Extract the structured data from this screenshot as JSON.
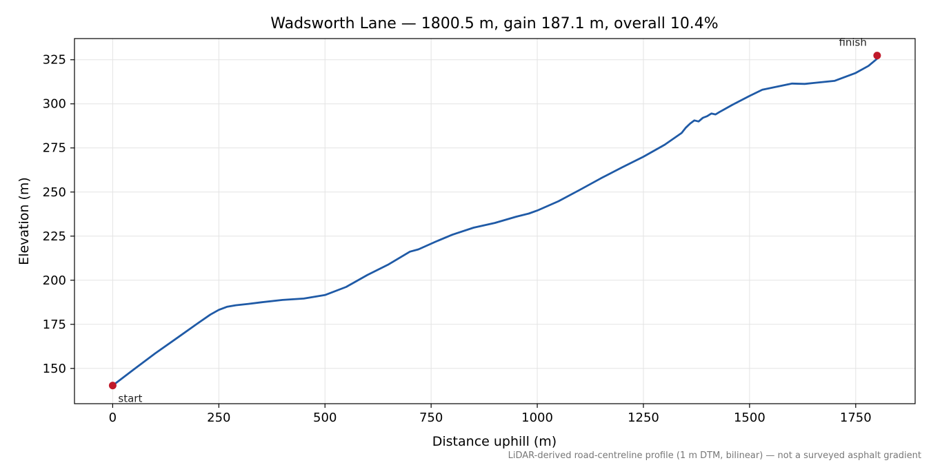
{
  "chart_data": {
    "type": "line",
    "title": "Wadsworth Lane — 1800.5 m, gain 187.1 m, overall 10.4%",
    "xlabel": "Distance uphill (m)",
    "ylabel": "Elevation (m)",
    "xlim": [
      -90,
      1890
    ],
    "ylim": [
      130,
      337
    ],
    "xticks": [
      0,
      250,
      500,
      750,
      1000,
      1250,
      1500,
      1750
    ],
    "yticks": [
      150,
      175,
      200,
      225,
      250,
      275,
      300,
      325
    ],
    "grid": true,
    "line_color": "#1f5aa6",
    "marker_color": "#c0192a",
    "series": [
      {
        "x": [
          0,
          50,
          100,
          150,
          200,
          230,
          250,
          270,
          290,
          320,
          350,
          400,
          450,
          500,
          550,
          600,
          650,
          700,
          720,
          760,
          800,
          850,
          900,
          950,
          980,
          1000,
          1050,
          1100,
          1150,
          1200,
          1250,
          1300,
          1340,
          1350,
          1360,
          1370,
          1380,
          1390,
          1400,
          1410,
          1420,
          1430,
          1440,
          1460,
          1500,
          1530,
          1570,
          1600,
          1630,
          1650,
          1700,
          1750,
          1780,
          1800
        ],
        "y": [
          140.3,
          149.5,
          158.5,
          167.0,
          175.5,
          180.5,
          183.2,
          185.0,
          185.8,
          186.6,
          187.5,
          188.8,
          189.6,
          191.6,
          196.2,
          203.0,
          209.0,
          216.2,
          217.5,
          221.8,
          225.8,
          229.8,
          232.5,
          236.0,
          237.8,
          239.5,
          244.8,
          251.2,
          257.8,
          264.0,
          270.0,
          276.8,
          283.5,
          286.5,
          288.8,
          290.6,
          290.0,
          292.1,
          293.0,
          294.5,
          294.0,
          295.5,
          296.8,
          299.5,
          304.5,
          308.0,
          310.0,
          311.5,
          311.3,
          311.8,
          313.0,
          317.5,
          321.5,
          325.5
        ]
      }
    ],
    "annotations": [
      {
        "text": "start",
        "x": 0,
        "y": 140.3
      },
      {
        "text": "finish",
        "x": 1800.5,
        "y": 327.4
      }
    ],
    "footnote": "LiDAR-derived road-centreline profile (1 m DTM, bilinear) — not a surveyed asphalt gradient"
  }
}
